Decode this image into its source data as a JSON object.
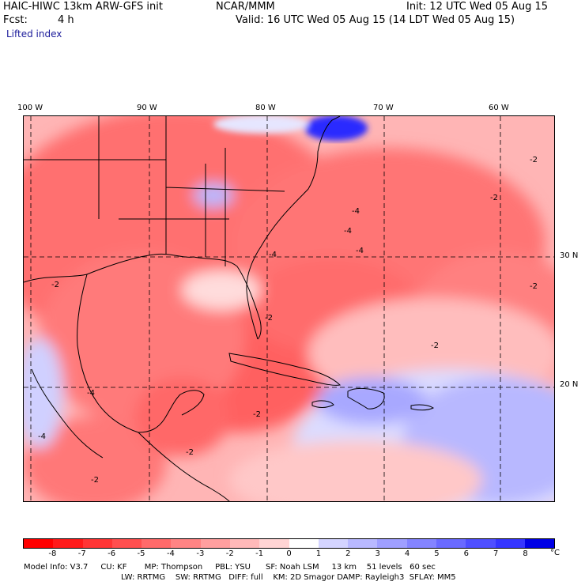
{
  "header": {
    "model": "HAIC-HIWC 13km ARW-GFS init",
    "org": "NCAR/MMM",
    "init": "Init: 12 UTC Wed 05 Aug 15",
    "fcst_label": "Fcst:",
    "fcst_value": "4 h",
    "valid": "Valid: 16 UTC Wed 05 Aug 15 (14 LDT Wed 05 Aug 15)",
    "field": "Lifted index"
  },
  "axes": {
    "lon_labels": [
      "100 W",
      "90 W",
      "80 W",
      "70 W",
      "60 W"
    ],
    "lat_labels": [
      "30 N",
      "20 N"
    ]
  },
  "map": {
    "contour_labels": [
      "-2",
      "-4",
      "-4",
      "-4",
      "-4",
      "-2",
      "-2",
      "-2",
      "-4",
      "-2",
      "-2",
      "-2",
      "-2",
      "-4",
      "-2"
    ]
  },
  "colorbar": {
    "ticks": [
      "-8",
      "-7",
      "-6",
      "-5",
      "-4",
      "-3",
      "-2",
      "-1",
      "0",
      "1",
      "2",
      "3",
      "4",
      "5",
      "6",
      "7",
      "8"
    ],
    "unit": "°C",
    "colors": [
      "#ff0000",
      "#ff1a1a",
      "#ff3535",
      "#ff4f4f",
      "#ff6a6a",
      "#ff8484",
      "#ff9f9f",
      "#ffb9b9",
      "#ffd4d4",
      "#ffffff",
      "#d4d4ff",
      "#b9b9ff",
      "#9f9fff",
      "#8484ff",
      "#6a6aff",
      "#4f4fff",
      "#3535ff",
      "#0000e6"
    ]
  },
  "footer": {
    "line1": "Model Info: V3.7     CU: KF       MP: Thompson     PBL: YSU      SF: Noah LSM     13 km    51 levels   60 sec",
    "line2": "LW: RRTMG    SW: RRTMG   DIFF: full    KM: 2D Smagor DAMP: Rayleigh3  SFLAY: MM5"
  }
}
